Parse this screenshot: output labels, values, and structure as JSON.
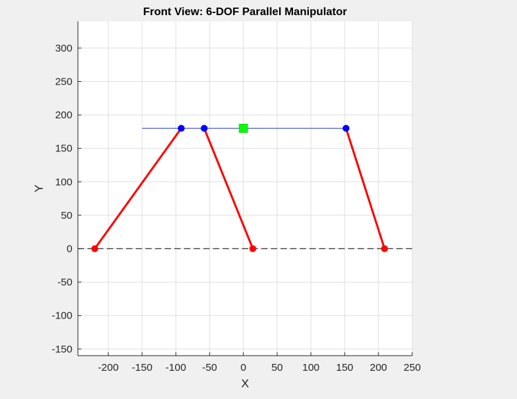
{
  "chart_data": {
    "type": "line",
    "title": "Front View: 6-DOF Parallel Manipulator",
    "xlabel": "X",
    "ylabel": "Y",
    "xlim": [
      -245,
      250
    ],
    "ylim": [
      -160,
      340
    ],
    "xticks": [
      -200,
      -150,
      -100,
      -50,
      0,
      50,
      100,
      150,
      200,
      250
    ],
    "yticks": [
      -150,
      -100,
      -50,
      0,
      50,
      100,
      150,
      200,
      250,
      300
    ],
    "grid": true,
    "legend": "none",
    "colors": {
      "legs": "#ff0000",
      "platform": "#4d5fd6",
      "platform_joints": "#0000ff",
      "base_joints": "#ff0000",
      "center": "#00ff00",
      "base_line": "#404040"
    },
    "base_line": {
      "y": 0,
      "style": "dashed",
      "x_range": [
        -245,
        250
      ]
    },
    "platform_line": {
      "y": 180,
      "x_range": [
        -150,
        153
      ]
    },
    "legs": [
      {
        "base": [
          -220,
          0
        ],
        "top": [
          -92,
          180
        ]
      },
      {
        "base": [
          14,
          0
        ],
        "top": [
          -58,
          180
        ]
      },
      {
        "base": [
          209,
          0
        ],
        "top": [
          152,
          180
        ]
      }
    ],
    "platform_joints": [
      [
        -92,
        180
      ],
      [
        -58,
        180
      ],
      [
        152,
        180
      ]
    ],
    "base_joints": [
      [
        -220,
        0
      ],
      [
        14,
        0
      ],
      [
        209,
        0
      ]
    ],
    "center": [
      0,
      180
    ]
  }
}
